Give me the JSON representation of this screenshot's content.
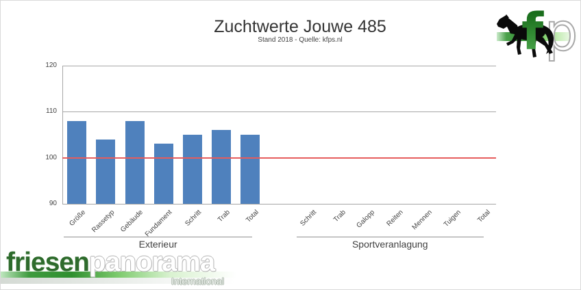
{
  "branding": {
    "corner_logo": {
      "letter_f": "f",
      "letter_p": "p"
    },
    "footer": {
      "word1": "friesen",
      "word2": "panorama",
      "subtitle": "International"
    }
  },
  "chart_data": {
    "type": "bar",
    "title": "Zuchtwerte Jouwe 485",
    "subtitle": "Stand 2018 - Quelle: kfps.nl",
    "xlabel": "",
    "ylabel": "",
    "ylim": [
      90,
      120
    ],
    "yticks": [
      120,
      110,
      100,
      90
    ],
    "gridlines": [
      120,
      110
    ],
    "grid": true,
    "legend": false,
    "bar_color": "#4f81bd",
    "reference_line": {
      "value": 100,
      "color": "#e65c5c"
    },
    "groups": [
      {
        "label": "Exterieur",
        "categories": [
          "Größe",
          "Rassetyp",
          "Gebäude",
          "Fundament",
          "Schritt",
          "Trab",
          "Total"
        ],
        "values": [
          108,
          104,
          108,
          103,
          105,
          106,
          105
        ]
      },
      {
        "label": "Sportveranlagung",
        "categories": [
          "Schritt",
          "Trab",
          "Galopp",
          "Reiten",
          "Mennen",
          "Tuigen",
          "Total"
        ],
        "values": [
          null,
          null,
          null,
          null,
          null,
          null,
          null
        ]
      }
    ]
  }
}
